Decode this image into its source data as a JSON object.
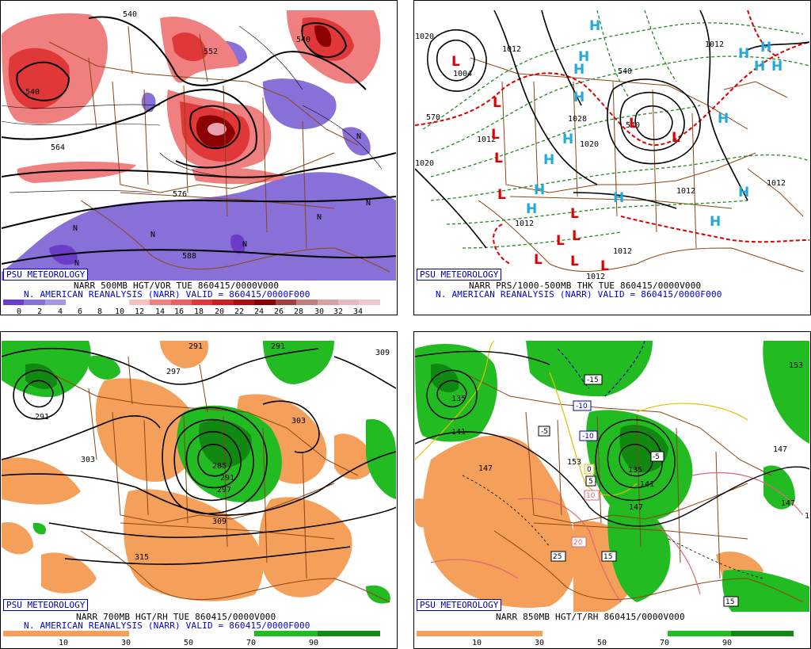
{
  "panels": {
    "p1": {
      "brand": "PSU METEOROLOGY",
      "caption_line1": "NARR 500MB HGT/VOR TUE 860415/0000V000",
      "caption_line2": "N. AMERICAN REANALYSIS (NARR) VALID = 860415/0000F000",
      "colorbar_ticks": [
        "0",
        "2",
        "4",
        "6",
        "8",
        "10",
        "12",
        "14",
        "16",
        "18",
        "20",
        "22",
        "24",
        "26",
        "28",
        "30",
        "32",
        "34"
      ],
      "contour_labels": [
        "540",
        "552",
        "540",
        "564",
        "576",
        "588",
        "540"
      ],
      "n_marks": [
        "N",
        "N",
        "N",
        "N",
        "N",
        "N",
        "N"
      ],
      "colors": {
        "neg_vor": "#8870d8",
        "pos_low": "#f08080",
        "pos_mid": "#e03838",
        "pos_high": "#8b0000"
      }
    },
    "p2": {
      "brand": "PSU METEOROLOGY",
      "caption_line1": "NARR PRS/1000-500MB THK TUE 860415/0000V000",
      "caption_line2": "N. AMERICAN REANALYSIS (NARR) VALID = 860415/0000F000",
      "pressure_labels": [
        "1004",
        "1012",
        "1020",
        "1020",
        "1028",
        "1020",
        "1012",
        "1012",
        "1012",
        "1012",
        "1012",
        "1012",
        "1012"
      ],
      "thickness_labels": [
        "540",
        "540",
        "570"
      ],
      "lows": [
        "L",
        "L",
        "L",
        "L",
        "L",
        "L",
        "L",
        "L",
        "L",
        "L",
        "L",
        "L",
        "L"
      ],
      "highs": [
        "H",
        "H",
        "H",
        "H",
        "H",
        "H",
        "H",
        "H",
        "H",
        "H",
        "H",
        "H",
        "H",
        "H",
        "H",
        "H"
      ],
      "colors": {
        "low": "#dd0000",
        "high": "#22aadd",
        "thick_cold": "#228822",
        "thick_warm": "#dd0000"
      }
    },
    "p3": {
      "brand": "PSU METEOROLOGY",
      "caption_line1": "NARR 700MB HGT/RH TUE 860415/0000V000",
      "caption_line2": "N. AMERICAN REANALYSIS (NARR) VALID = 860415/0000F000",
      "colorbar_ticks": [
        "10",
        "30",
        "50",
        "70",
        "90"
      ],
      "contour_labels": [
        "291",
        "291",
        "309",
        "297",
        "291",
        "303",
        "303",
        "285",
        "291",
        "297",
        "309",
        "315"
      ],
      "colors": {
        "dry": "#f5a05a",
        "moist": "#22bb22",
        "very_moist": "#118811"
      }
    },
    "p4": {
      "brand": "PSU METEOROLOGY",
      "caption_line1": "NARR 850MB HGT/T/RH 860415/0000V000",
      "colorbar_ticks": [
        "10",
        "30",
        "50",
        "70",
        "90"
      ],
      "contour_labels": [
        "135",
        "141",
        "147",
        "153",
        "135",
        "141",
        "147",
        "147",
        "147",
        "153",
        "1"
      ],
      "temp_boxes": [
        "-15",
        "-10",
        "-10",
        "-5",
        "-5",
        "0",
        "5",
        "10",
        "20",
        "25",
        "15",
        "15"
      ],
      "colors": {
        "dry": "#f5a05a",
        "moist": "#22bb22",
        "very_moist": "#118811"
      }
    }
  }
}
